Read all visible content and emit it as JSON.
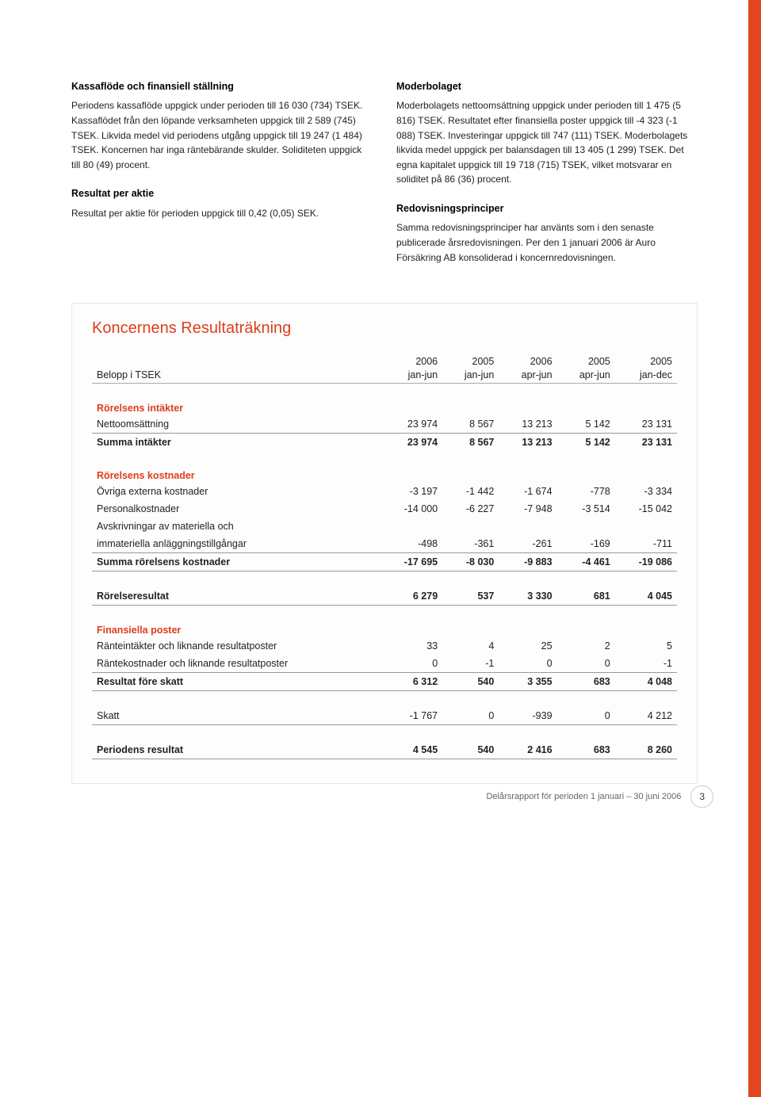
{
  "colors": {
    "accent": "#dd3e1b",
    "bar": "#e2471f",
    "text": "#222222",
    "rule": "#999999",
    "border": "#e8e8e8",
    "footer_text": "#666666"
  },
  "left_column": {
    "p1_title": "Kassaflöde och finansiell ställning",
    "p1_body": "Periodens kassaflöde uppgick under perioden till 16 030 (734) TSEK. Kassaflödet från den löpande verksamheten uppgick till 2 589 (745) TSEK. Likvida medel vid periodens utgång uppgick till 19 247 (1 484) TSEK. Koncernen har inga räntebärande skulder. Soliditeten uppgick till 80 (49) procent.",
    "p2_title": "Resultat per aktie",
    "p2_body": "Resultat per aktie för perioden uppgick till 0,42 (0,05) SEK."
  },
  "right_column": {
    "p1_title": "Moderbolaget",
    "p1_body": "Moderbolagets nettoomsättning uppgick under perioden till 1 475 (5 816) TSEK. Resultatet efter finansiella poster uppgick till -4 323 (-1 088) TSEK. Investeringar uppgick till 747 (111) TSEK. Moderbolagets likvida medel uppgick per balansdagen till 13 405 (1 299) TSEK. Det egna kapitalet uppgick till 19 718 (715) TSEK, vilket motsvarar en soliditet på 86 (36) procent.",
    "p2_title": "Redovisningsprinciper",
    "p2_body": "Samma redovisningsprinciper har använts som i den senaste publicerade årsredovisningen. Per den 1 januari 2006 är Auro Försäkring AB konsoliderad i koncernredovisningen."
  },
  "table": {
    "title": "Koncernens Resultaträkning",
    "header_row1": [
      "",
      "2006",
      "2005",
      "2006",
      "2005",
      "2005"
    ],
    "header_row2": [
      "Belopp i TSEK",
      "jan-jun",
      "jan-jun",
      "apr-jun",
      "apr-jun",
      "jan-dec"
    ],
    "groups": {
      "intakter_head": "Rörelsens intäkter",
      "nettooms": [
        "Nettoomsättning",
        "23 974",
        "8 567",
        "13 213",
        "5 142",
        "23 131"
      ],
      "summa_int": [
        "Summa intäkter",
        "23 974",
        "8 567",
        "13 213",
        "5 142",
        "23 131"
      ],
      "kost_head": "Rörelsens kostnader",
      "ovriga": [
        "Övriga externa kostnader",
        "-3 197",
        "-1 442",
        "-1 674",
        "-778",
        "-3 334"
      ],
      "personal": [
        "Personalkostnader",
        "-14 000",
        "-6 227",
        "-7 948",
        "-3 514",
        "-15 042"
      ],
      "avskr1": [
        "Avskrivningar av materiella och",
        "",
        "",
        "",
        "",
        ""
      ],
      "avskr2": [
        "immateriella anläggningstillgångar",
        "-498",
        "-361",
        "-261",
        "-169",
        "-711"
      ],
      "summa_kost": [
        "Summa rörelsens kostnader",
        "-17 695",
        "-8 030",
        "-9 883",
        "-4 461",
        "-19 086"
      ],
      "rorres": [
        "Rörelseresultat",
        "6 279",
        "537",
        "3 330",
        "681",
        "4 045"
      ],
      "fin_head": "Finansiella poster",
      "ranteint": [
        "Ränteintäkter och liknande resultatposter",
        "33",
        "4",
        "25",
        "2",
        "5"
      ],
      "rantekost": [
        "Räntekostnader och liknande resultatposter",
        "0",
        "-1",
        "0",
        "0",
        "-1"
      ],
      "resfore": [
        "Resultat före skatt",
        "6 312",
        "540",
        "3 355",
        "683",
        "4 048"
      ],
      "skatt": [
        "Skatt",
        "-1 767",
        "0",
        "-939",
        "0",
        "4 212"
      ],
      "periodres": [
        "Periodens resultat",
        "4 545",
        "540",
        "2 416",
        "683",
        "8 260"
      ]
    }
  },
  "footer": {
    "text": "Delårsrapport för perioden 1 januari – 30 juni 2006",
    "page_number": "3"
  }
}
